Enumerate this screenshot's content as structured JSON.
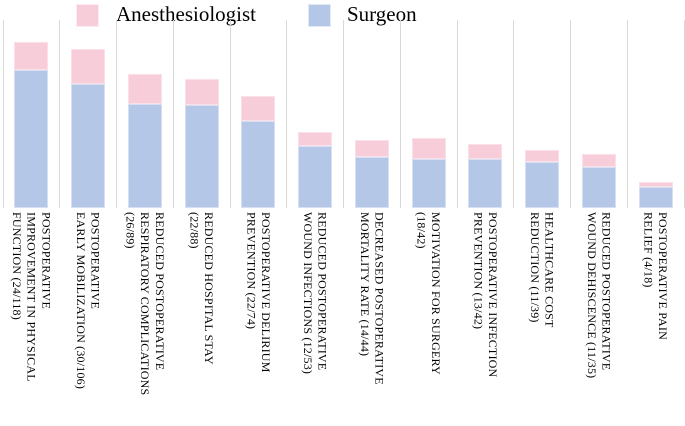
{
  "legend": {
    "items": [
      {
        "label": "Anesthesiologist",
        "color": "#f7cdd9"
      },
      {
        "label": "Surgeon",
        "color": "#b4c7e7"
      }
    ]
  },
  "colors": {
    "anesthesiologist_pink": "#f7cdd9",
    "surgeon_blue": "#b4c7e7",
    "gridline_gray": "#d9d9d9",
    "text_black": "#000000"
  },
  "chart_data": {
    "type": "bar",
    "stacked": true,
    "orientation": "vertical",
    "title": "",
    "xlabel": "",
    "ylabel": "",
    "y_axis_visible": false,
    "gridlines": "vertical-category-separators",
    "legend_position": "top",
    "stack_order_bottom_to_top": [
      "Surgeon",
      "Anesthesiologist"
    ],
    "categories": [
      {
        "label": "POSTOPERATIVE IMPROVEMENT IN PHYSICAL FUNCTION (24/118)",
        "lines": [
          "POSTOPERATIVE",
          "IMPROVEMENT IN PHYSICAL",
          "FUNCTION (24/118)"
        ]
      },
      {
        "label": "POSTOPERATIVE EARLY MOBILIZATION (30/106)",
        "lines": [
          "POSTOPERATIVE",
          "EARLY MOBILIZATION (30/106)"
        ]
      },
      {
        "label": "REDUCED POSTOPERATIVE RESPIRATORY COMPLICATIONS (26/89)",
        "lines": [
          "REDUCED POSTOPERATIVE",
          "RESPIRATORY COMPLICATIONS",
          "(26/89)"
        ]
      },
      {
        "label": "REDUCED HOSPITAL STAY (22/88)",
        "lines": [
          "REDUCED HOSPITAL STAY",
          "(22/88)"
        ]
      },
      {
        "label": "POSTOPERATIVE DELIRIUM PREVENTION (22/74)",
        "lines": [
          "POSTOPERATIVE DELIRIUM",
          "PREVENTION (22/74)"
        ]
      },
      {
        "label": "REDUCED POSTOPERATIVE WOUND INFECTIONS (12/53)",
        "lines": [
          "REDUCED POSTOPERATIVE",
          "WOUND INFECTIONS (12/53)"
        ]
      },
      {
        "label": "DECREASED POSTOPERATIVE MORTALITY RATE (14/44)",
        "lines": [
          "DECREASED POSTOPERATIVE",
          "MORTALITY RATE (14/44)"
        ]
      },
      {
        "label": "MOTIVATION FOR SURGERY (18/42)",
        "lines": [
          "MOTIVATION FOR SURGERY",
          "(18/42)"
        ]
      },
      {
        "label": "POSTOPERATIVE INFECTION PREVENTION (13/42)",
        "lines": [
          "POSTOPERATIVE INFECTION",
          "PREVENTION (13/42)"
        ]
      },
      {
        "label": "HEALTHCARE COST REDUCTION (11/39)",
        "lines": [
          "HEALTHCARE COST",
          "REDUCTION (11/39)"
        ]
      },
      {
        "label": "REDUCED POSTOPERATIVE WOUND DEHISCENCE (11/35)",
        "lines": [
          "REDUCED POSTOPERATIVE",
          "WOUND DEHISCENCE (11/35)"
        ]
      },
      {
        "label": "POSTOPERATIVE PAIN RELIEF (4/18)",
        "lines": [
          "POSTOPERATIVE PAIN",
          "RELIEF (4/18)"
        ]
      }
    ],
    "series": [
      {
        "name": "Surgeon",
        "color": "#b4c7e7",
        "values": [
          118,
          106,
          89,
          88,
          74,
          53,
          44,
          42,
          42,
          39,
          35,
          18
        ]
      },
      {
        "name": "Anesthesiologist",
        "color": "#f7cdd9",
        "values": [
          24,
          30,
          26,
          22,
          22,
          12,
          14,
          18,
          13,
          11,
          11,
          4
        ]
      }
    ]
  }
}
